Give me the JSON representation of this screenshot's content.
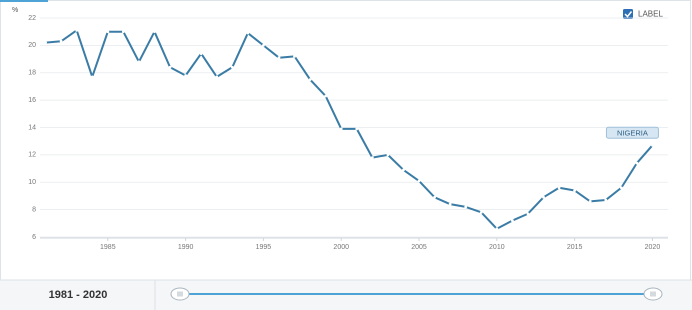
{
  "chart_data": {
    "type": "line",
    "y_label": "%",
    "label_toggle": "LABEL",
    "range_label": "1981 - 2020",
    "x": [
      1981,
      1982,
      1983,
      1984,
      1985,
      1986,
      1987,
      1988,
      1989,
      1990,
      1991,
      1992,
      1993,
      1994,
      1995,
      1996,
      1997,
      1998,
      1999,
      2000,
      2001,
      2002,
      2003,
      2004,
      2005,
      2006,
      2007,
      2008,
      2009,
      2010,
      2011,
      2012,
      2013,
      2014,
      2015,
      2016,
      2017,
      2018,
      2019,
      2020
    ],
    "series": [
      {
        "name": "NIGERIA",
        "color": "#3a7ca5",
        "values": [
          20.2,
          20.3,
          21.1,
          17.7,
          21.0,
          21.0,
          18.8,
          21.0,
          18.4,
          17.8,
          19.4,
          17.7,
          18.4,
          20.9,
          20.0,
          19.1,
          19.2,
          17.5,
          16.3,
          13.9,
          13.9,
          11.8,
          12.0,
          10.9,
          10.1,
          8.9,
          8.4,
          8.2,
          7.8,
          6.6,
          7.2,
          7.7,
          8.9,
          9.6,
          9.4,
          8.6,
          8.7,
          9.6,
          11.4,
          12.7
        ]
      }
    ],
    "xlim": [
      1980,
      2021
    ],
    "xticks": [
      1985,
      1990,
      1995,
      2000,
      2005,
      2010,
      2015,
      2020
    ],
    "ylim": [
      6,
      22
    ],
    "yticks": [
      6,
      8,
      10,
      12,
      14,
      16,
      18,
      20,
      22
    ],
    "grid": true
  }
}
